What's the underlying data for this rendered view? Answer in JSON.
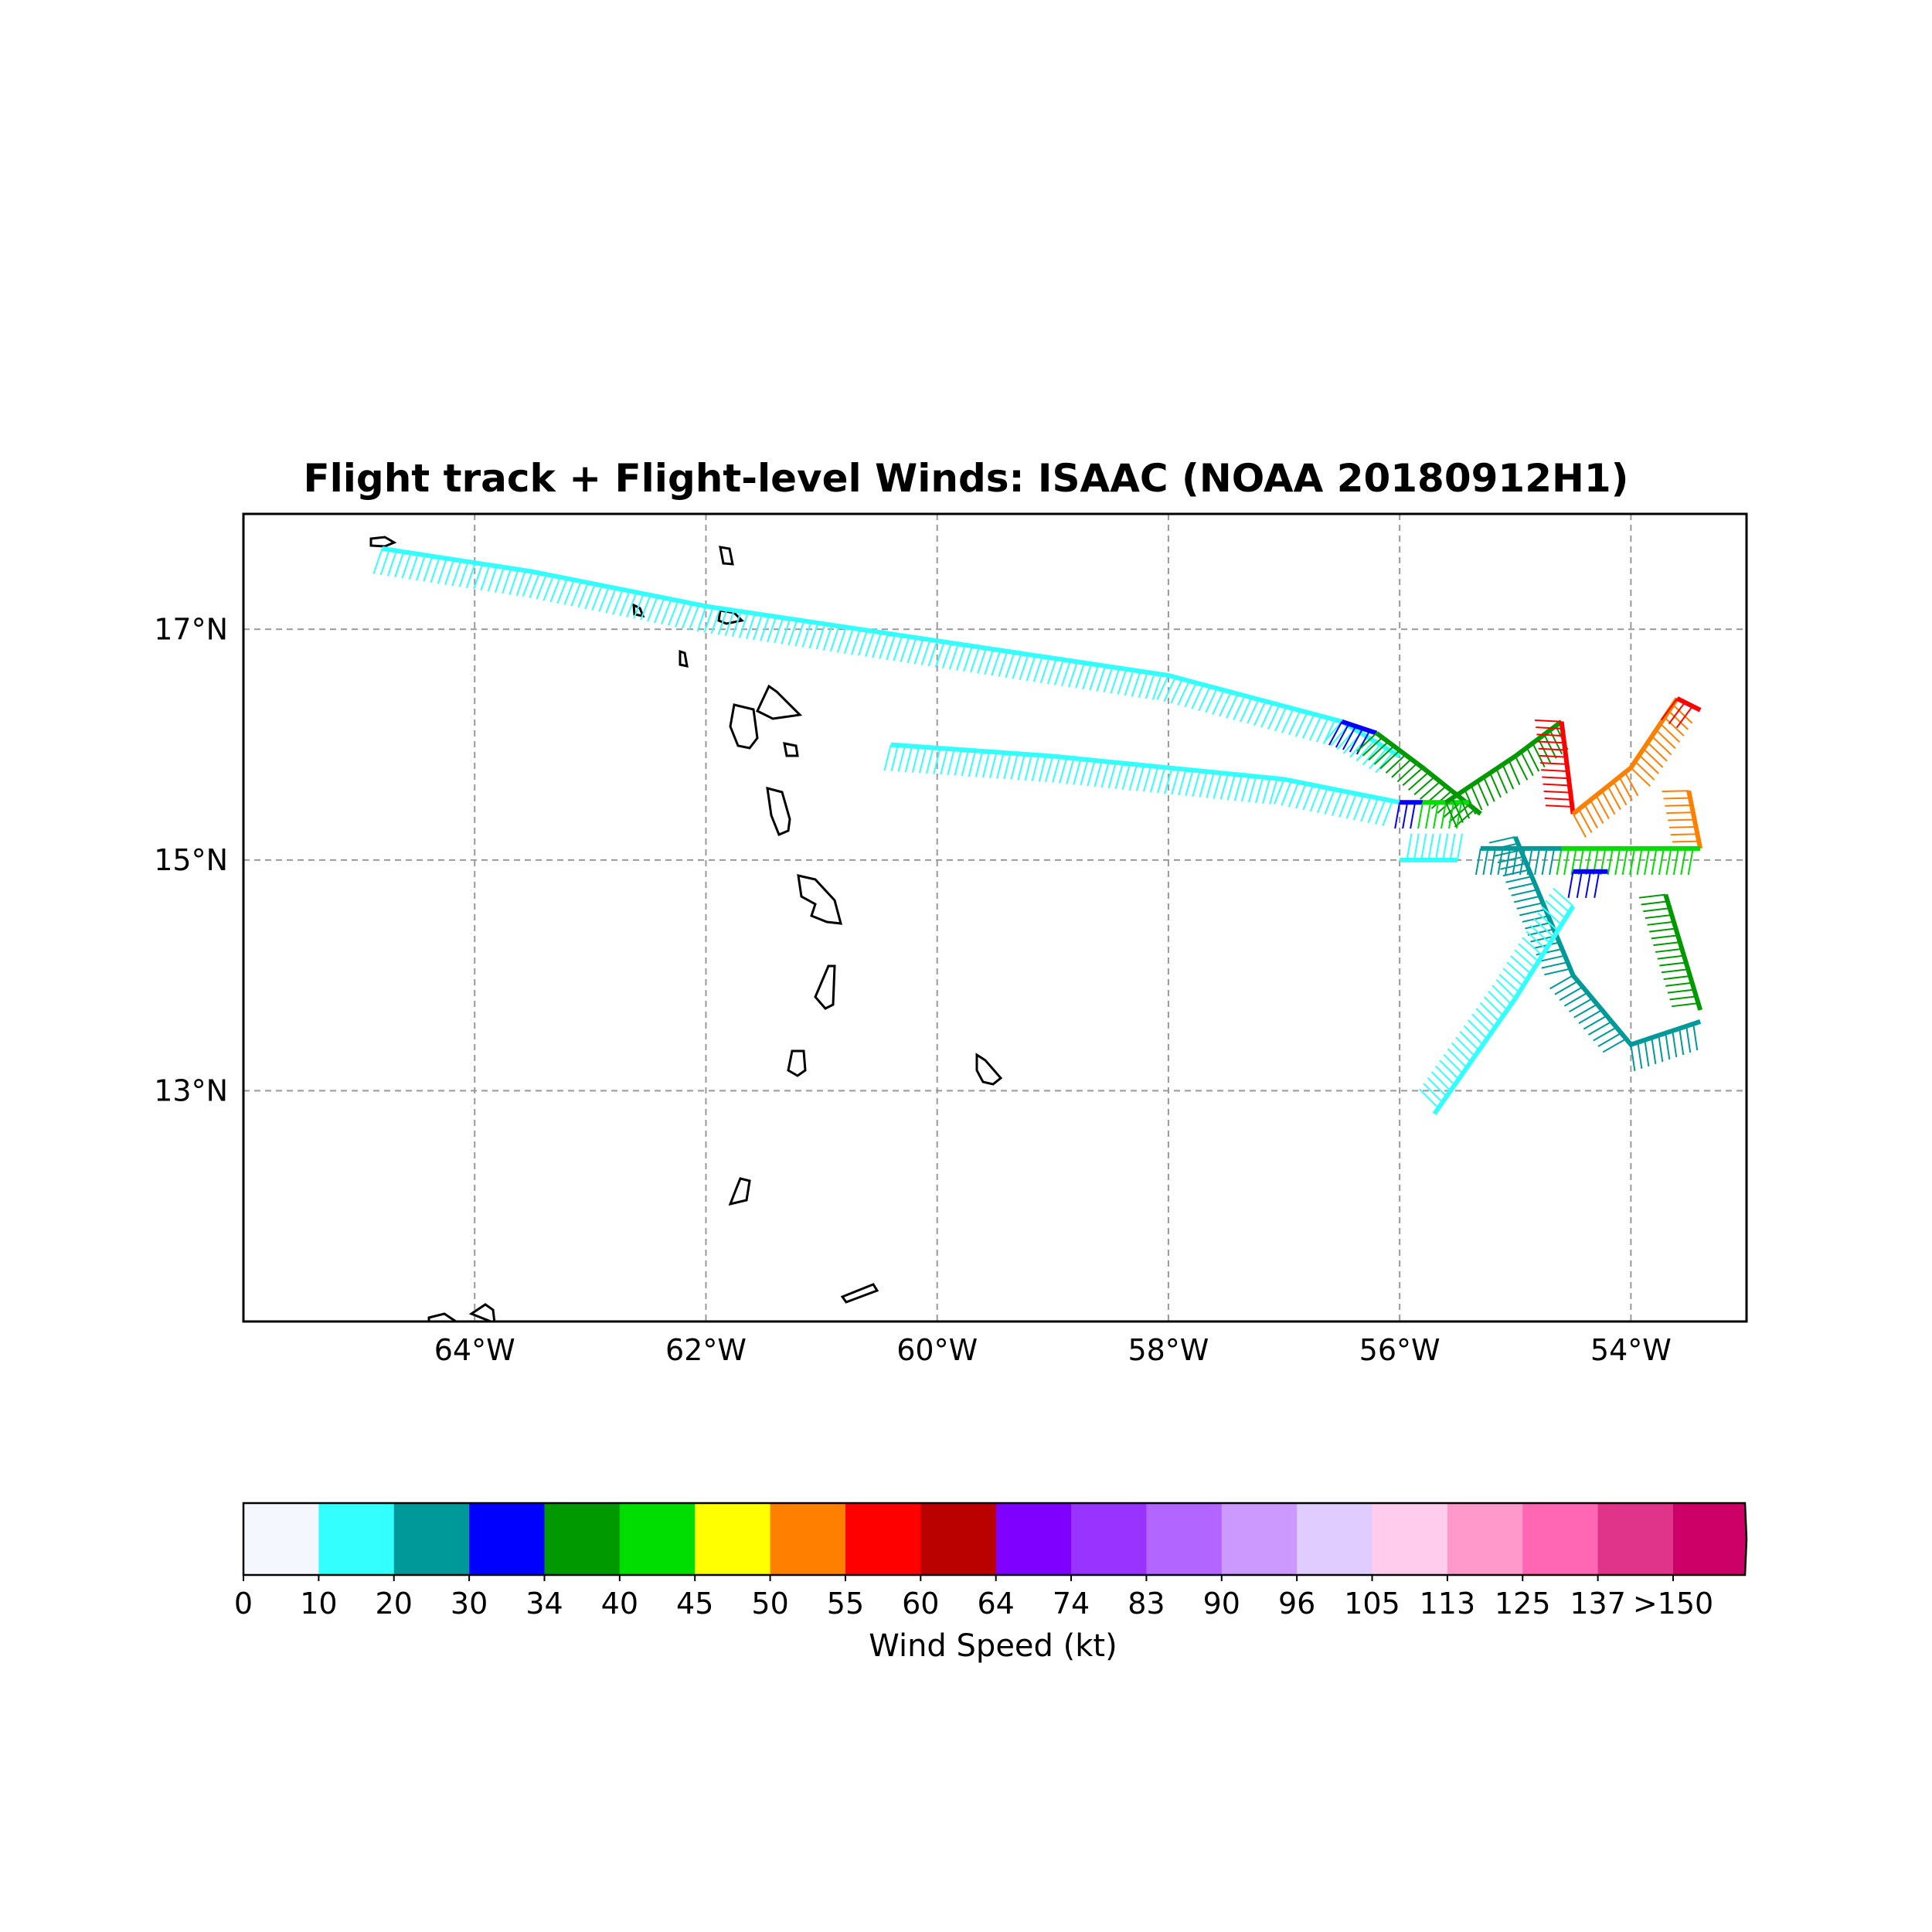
{
  "title": "Flight track + Flight-level Winds: ISAAC (NOAA 20180912H1)",
  "map": {
    "lon_range": [
      -66,
      -53
    ],
    "lat_range": [
      11,
      18
    ],
    "lon_ticks": [
      {
        "value": -64,
        "label": "64°W"
      },
      {
        "value": -62,
        "label": "62°W"
      },
      {
        "value": -60,
        "label": "60°W"
      },
      {
        "value": -58,
        "label": "58°W"
      },
      {
        "value": -56,
        "label": "56°W"
      },
      {
        "value": -54,
        "label": "54°W"
      }
    ],
    "lat_ticks": [
      {
        "value": 17,
        "label": "17°N"
      },
      {
        "value": 15,
        "label": "15°N"
      },
      {
        "value": 13,
        "label": "13°N"
      }
    ],
    "gridlines": "dashed"
  },
  "colorbar": {
    "label": "Wind Speed (kt)",
    "bounds": [
      "0",
      "10",
      "20",
      "30",
      "34",
      "40",
      "45",
      "50",
      "55",
      "60",
      "64",
      "74",
      "83",
      "90",
      "96",
      "105",
      "113",
      "125",
      "137",
      ">150"
    ],
    "colors": [
      "#f5f7ff",
      "#33ffff",
      "#009999",
      "#0000ff",
      "#009900",
      "#00dd00",
      "#ffff00",
      "#ff8000",
      "#ff0000",
      "#bb0000",
      "#8000ff",
      "#9933ff",
      "#b366ff",
      "#cc99ff",
      "#e0ccff",
      "#ffccee",
      "#ff99cc",
      "#ff66b3",
      "#e0338a",
      "#cc0066"
    ],
    "extend": "max"
  },
  "chart_data": {
    "type": "map",
    "description_source": "flight-level wind barbs along aircraft track",
    "track_segments": [
      {
        "path": [
          [
            -64.8,
            17.7
          ],
          [
            -63.5,
            17.5
          ],
          [
            -62.0,
            17.2
          ],
          [
            -60.0,
            16.9
          ],
          [
            -58.0,
            16.6
          ],
          [
            -56.5,
            16.2
          ],
          [
            -56.0,
            15.9
          ]
        ],
        "speed_kt": 15
      },
      {
        "path": [
          [
            -56.5,
            16.2
          ],
          [
            -56.2,
            16.1
          ]
        ],
        "speed_kt": 32
      },
      {
        "path": [
          [
            -56.2,
            16.1
          ],
          [
            -55.8,
            15.8
          ],
          [
            -55.3,
            15.4
          ]
        ],
        "speed_kt": 38
      },
      {
        "path": [
          [
            -60.4,
            16.0
          ],
          [
            -59.0,
            15.9
          ],
          [
            -57.0,
            15.7
          ],
          [
            -56.0,
            15.5
          ]
        ],
        "speed_kt": 15
      },
      {
        "path": [
          [
            -56.0,
            15.5
          ],
          [
            -55.8,
            15.5
          ]
        ],
        "speed_kt": 32
      },
      {
        "path": [
          [
            -55.8,
            15.5
          ],
          [
            -55.4,
            15.5
          ]
        ],
        "speed_kt": 42
      },
      {
        "path": [
          [
            -55.6,
            15.5
          ],
          [
            -55.0,
            15.9
          ],
          [
            -54.6,
            16.2
          ]
        ],
        "speed_kt": 38
      },
      {
        "path": [
          [
            -54.6,
            16.2
          ],
          [
            -54.5,
            15.4
          ]
        ],
        "speed_kt": 58
      },
      {
        "path": [
          [
            -54.5,
            15.4
          ],
          [
            -54.0,
            15.8
          ],
          [
            -53.6,
            16.4
          ]
        ],
        "speed_kt": 50
      },
      {
        "path": [
          [
            -53.6,
            16.4
          ],
          [
            -53.4,
            16.3
          ]
        ],
        "speed_kt": 58
      },
      {
        "path": [
          [
            -53.5,
            15.6
          ],
          [
            -53.4,
            15.1
          ]
        ],
        "speed_kt": 52
      },
      {
        "path": [
          [
            -54.6,
            15.1
          ],
          [
            -53.4,
            15.1
          ]
        ],
        "speed_kt": 44
      },
      {
        "path": [
          [
            -55.3,
            15.1
          ],
          [
            -54.6,
            15.1
          ]
        ],
        "speed_kt": 25
      },
      {
        "path": [
          [
            -54.5,
            14.9
          ],
          [
            -54.2,
            14.9
          ]
        ],
        "speed_kt": 32
      },
      {
        "path": [
          [
            -55.0,
            15.2
          ],
          [
            -54.5,
            14.0
          ],
          [
            -54.0,
            13.4
          ],
          [
            -53.4,
            13.6
          ]
        ],
        "speed_kt": 22
      },
      {
        "path": [
          [
            -53.7,
            14.7
          ],
          [
            -53.4,
            13.7
          ]
        ],
        "speed_kt": 38
      },
      {
        "path": [
          [
            -54.5,
            14.6
          ],
          [
            -55.0,
            13.8
          ],
          [
            -55.7,
            12.8
          ]
        ],
        "speed_kt": 14
      },
      {
        "path": [
          [
            -55.5,
            15.0
          ],
          [
            -56.0,
            15.0
          ]
        ],
        "speed_kt": 15
      }
    ]
  }
}
